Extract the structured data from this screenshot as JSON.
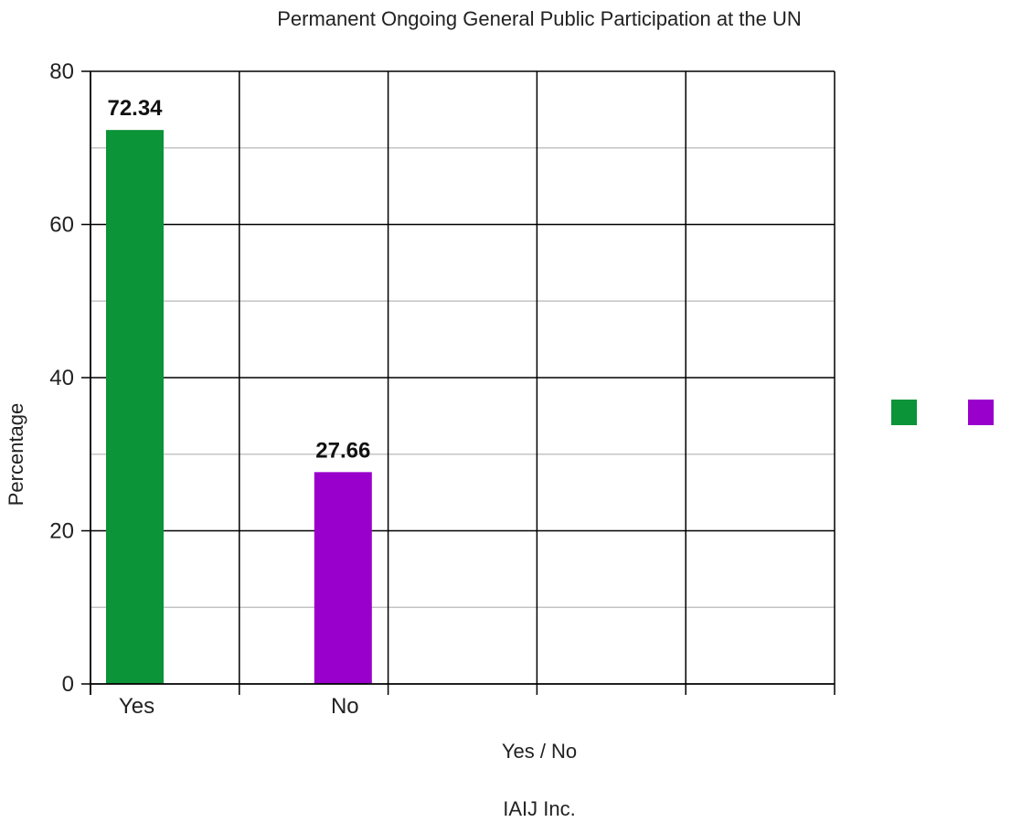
{
  "chart_data": {
    "type": "bar",
    "title": "Permanent Ongoing General Public Participation at the UN",
    "xlabel": "Yes / No",
    "ylabel": "Percentage",
    "footer": "IAIJ Inc.",
    "categories": [
      "Yes",
      "No"
    ],
    "values": [
      72.34,
      27.66
    ],
    "value_labels": [
      "72.34",
      "27.66"
    ],
    "colors": [
      "#0b9438",
      "#9900cc"
    ],
    "ylim": [
      0,
      80
    ],
    "yticks": [
      0,
      20,
      40,
      60,
      80
    ],
    "ytick_labels": [
      "0",
      "20",
      "40",
      "60",
      "80"
    ],
    "x_slots": 5,
    "grid": true,
    "legend_position": "right"
  }
}
